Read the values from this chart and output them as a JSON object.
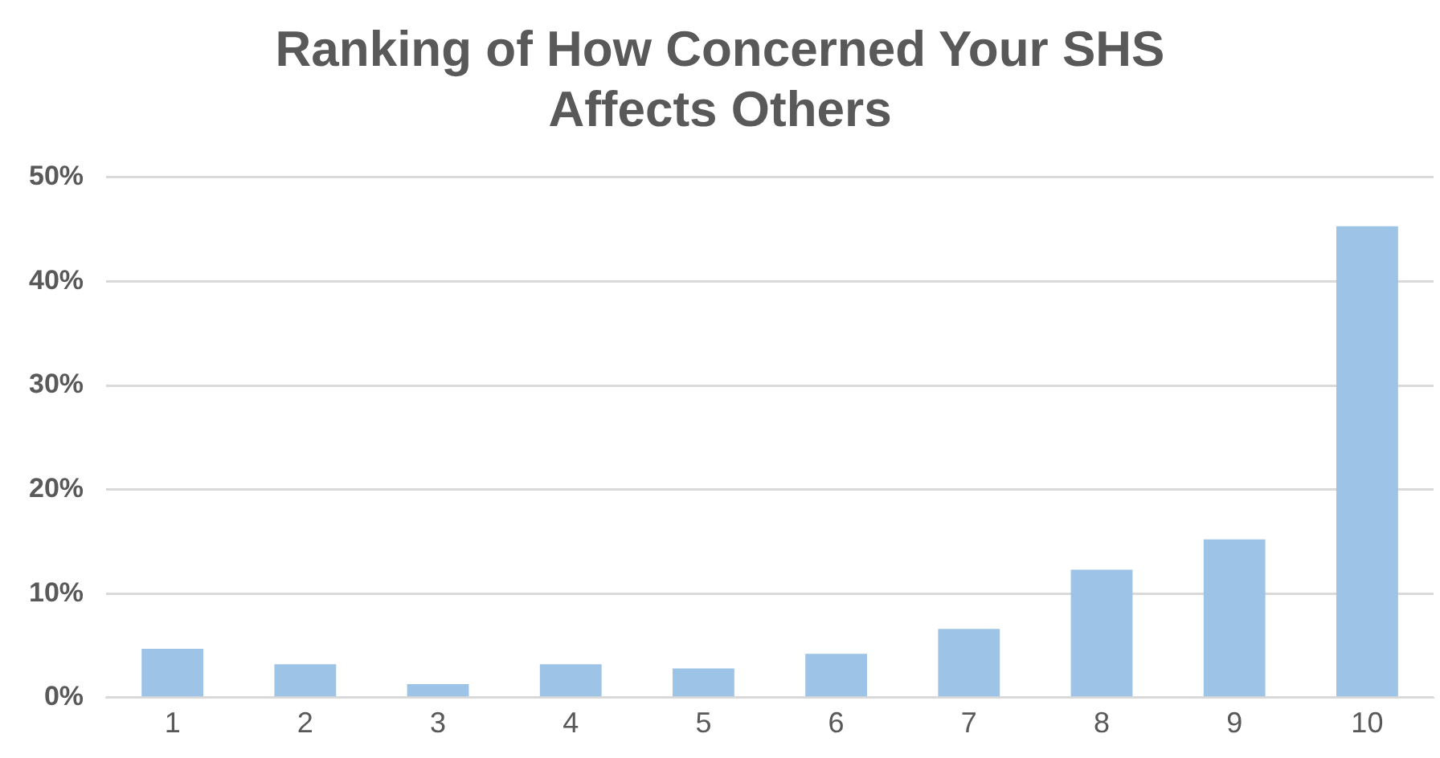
{
  "chart_data": {
    "type": "bar",
    "title": [
      "Ranking of How Concerned Your SHS",
      "Affects Others"
    ],
    "categories": [
      "1",
      "2",
      "3",
      "4",
      "5",
      "6",
      "7",
      "8",
      "9",
      "10"
    ],
    "values": [
      4.7,
      3.2,
      1.3,
      3.2,
      2.8,
      4.2,
      6.6,
      12.3,
      15.2,
      45.3
    ],
    "color": "#9dc3e6",
    "ylim": [
      0,
      50
    ],
    "yticks": [
      {
        "value": 0,
        "label": "0%"
      },
      {
        "value": 10,
        "label": "10%"
      },
      {
        "value": 20,
        "label": "20%"
      },
      {
        "value": 30,
        "label": "30%"
      },
      {
        "value": 40,
        "label": "40%"
      },
      {
        "value": 50,
        "label": "50%"
      }
    ],
    "grid": "y"
  }
}
